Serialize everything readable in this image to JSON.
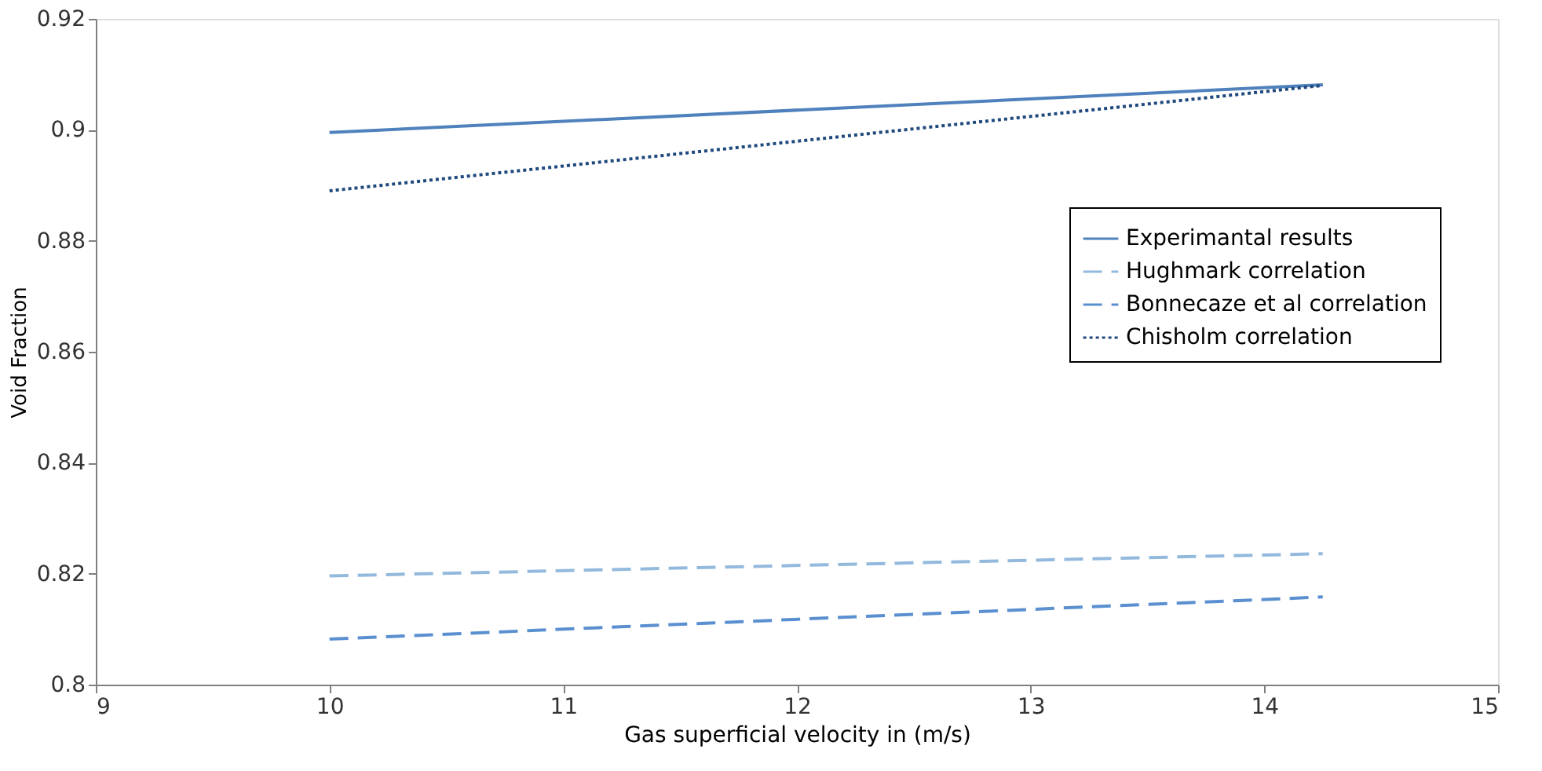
{
  "chart_data": {
    "type": "line",
    "xlabel": "Gas superficial velocity in (m/s)",
    "ylabel": "Void Fraction",
    "x": [
      10,
      14.25
    ],
    "series": [
      {
        "name": "Experimantal results",
        "color": "#4f81bd",
        "line_style": "solid",
        "values": [
          0.8995,
          0.9081
        ]
      },
      {
        "name": "Hughmark correlation",
        "color": "#93b9dd",
        "line_style": "dashed",
        "values": [
          0.8196,
          0.8236
        ]
      },
      {
        "name": "Bonnecaze et al correlation",
        "color": "#5a8fd0",
        "line_style": "dashed",
        "values": [
          0.8082,
          0.8158
        ]
      },
      {
        "name": "Chisholm correlation",
        "color": "#1f497d",
        "line_style": "dotted",
        "values": [
          0.889,
          0.908
        ]
      }
    ],
    "xlim": [
      9,
      15
    ],
    "xticks": [
      9,
      10,
      11,
      12,
      13,
      14,
      15
    ],
    "ylim": [
      0.8,
      0.92
    ],
    "yticks": [
      0.8,
      0.82,
      0.84,
      0.86,
      0.88,
      0.9,
      0.92
    ],
    "grid": false,
    "legend": "right",
    "marker": "none"
  }
}
